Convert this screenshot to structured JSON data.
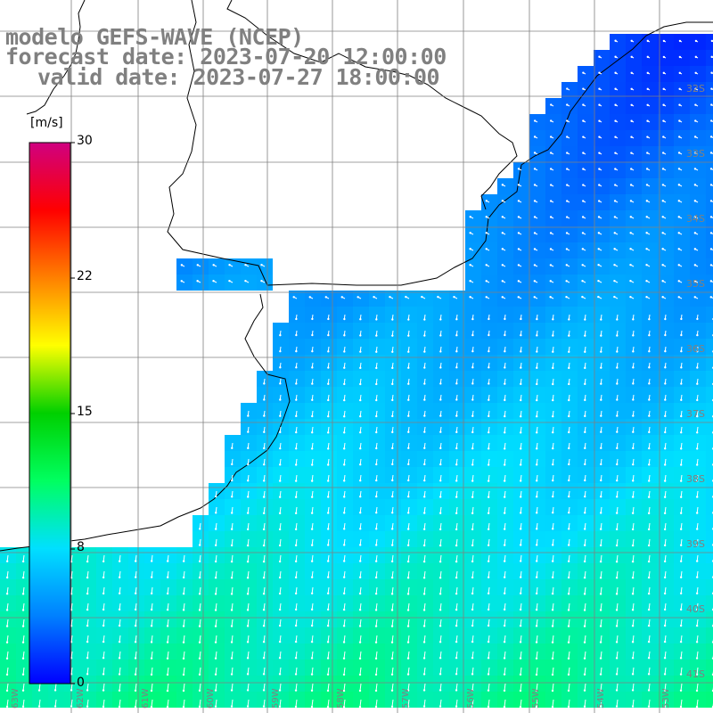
{
  "title": {
    "line1": "modelo GEFS-WAVE (NCEP)",
    "line2": "forecast date: 2023-07-20 12:00:00",
    "line3": "valid date: 2023-07-27 18:00:00"
  },
  "colorbar": {
    "unit": "[m/s]",
    "ticks": [
      "30",
      "22",
      "15",
      "8",
      "0"
    ],
    "colors": [
      "#0000ff",
      "#0080ff",
      "#00e0ff",
      "#00ff60",
      "#00d000",
      "#ffff00",
      "#ff8000",
      "#ff0000",
      "#d00080"
    ]
  },
  "lat_labels": [
    "32S",
    "33S",
    "34S",
    "35S",
    "36S",
    "37S",
    "38S",
    "39S",
    "40S",
    "41S"
  ],
  "lon_labels": [
    "63W",
    "62W",
    "61W",
    "60W",
    "59W",
    "58W",
    "57W",
    "56W",
    "55W",
    "54W",
    "53W"
  ],
  "colors": {
    "land": "#ffffff",
    "grid": "#808080",
    "coast": "#000000",
    "arrow": "#ffffff"
  }
}
